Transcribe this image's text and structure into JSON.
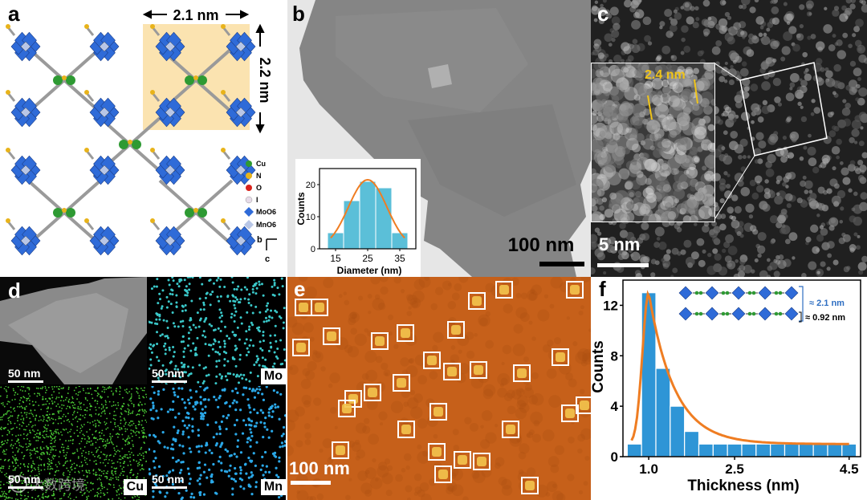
{
  "panels": {
    "a": {
      "label": "a",
      "dim_width": "2.1 nm",
      "dim_height": "2.2 nm",
      "legend": [
        {
          "name": "Cu",
          "color": "#2e9a33"
        },
        {
          "name": "N",
          "color": "#e8b31a"
        },
        {
          "name": "O",
          "color": "#d8231c"
        },
        {
          "name": "I",
          "color": "#e7dbe8"
        },
        {
          "name": "MoO6",
          "color": "#2f6bd8"
        },
        {
          "name": "MnO6",
          "color": "#b8c6e6"
        }
      ],
      "axis_b": "b",
      "axis_c": "c",
      "colors": {
        "polyhedron": "#2f6bd8",
        "linker": "#9a9a9a",
        "highlight": "#fbe3b0"
      }
    },
    "b": {
      "label": "b",
      "scalebar": "100 nm",
      "inset": {
        "chart_data": {
          "type": "bar",
          "categories": [
            "15",
            "20",
            "25",
            "30",
            "35"
          ],
          "values": [
            5,
            15,
            21,
            19,
            5
          ],
          "xlabel": "Diameter (nm)",
          "ylabel": "Counts",
          "xticks": [
            "15",
            "25",
            "35"
          ],
          "yticks": [
            "0",
            "10",
            "20"
          ],
          "ylim": [
            0,
            25
          ],
          "fit": "gaussian",
          "bar_color": "#5bbfd8",
          "fit_color": "#ef7d22"
        }
      }
    },
    "c": {
      "label": "c",
      "spacing": "2.4 nm",
      "scalebar": "5 nm",
      "colors": {
        "spacing": "#f0c419"
      }
    },
    "d": {
      "label": "d",
      "scalebar": "50 nm",
      "maps": [
        {
          "element": "",
          "color": "#ffffff"
        },
        {
          "element": "Mo",
          "color": "#3ac8c9"
        },
        {
          "element": "Cu",
          "color": "#4ac935"
        },
        {
          "element": "Mn",
          "color": "#2aa8e8"
        }
      ]
    },
    "e": {
      "label": "e",
      "scalebar": "100 nm",
      "colors": {
        "background": "#c9631b"
      }
    },
    "f": {
      "label": "f",
      "chart_data": {
        "type": "bar",
        "categories": [
          "0.75",
          "1.0",
          "1.25",
          "1.5",
          "1.75",
          "2.0",
          "2.25",
          "2.5",
          "2.75",
          "3.0",
          "3.25",
          "3.5",
          "3.75",
          "4.0",
          "4.25",
          "4.5"
        ],
        "values": [
          1,
          13,
          7,
          4,
          2,
          1,
          1,
          1,
          1,
          1,
          1,
          1,
          1,
          1,
          1,
          1
        ],
        "xlabel": "Thickness (nm)",
        "ylabel": "Counts",
        "xticks": [
          "1.0",
          "2.5",
          "4.5"
        ],
        "yticks": [
          "0",
          "4",
          "8",
          "12"
        ],
        "ylim": [
          0,
          14
        ],
        "xlim": [
          0.55,
          4.7
        ],
        "fit": "log-normal",
        "bar_color": "#2e95d6",
        "fit_color": "#ef7d22"
      },
      "annotation_bilayer": "≈ 2.1 nm",
      "annotation_monolayer": "≈ 0.92 nm"
    }
  },
  "watermark": "大数跨境"
}
